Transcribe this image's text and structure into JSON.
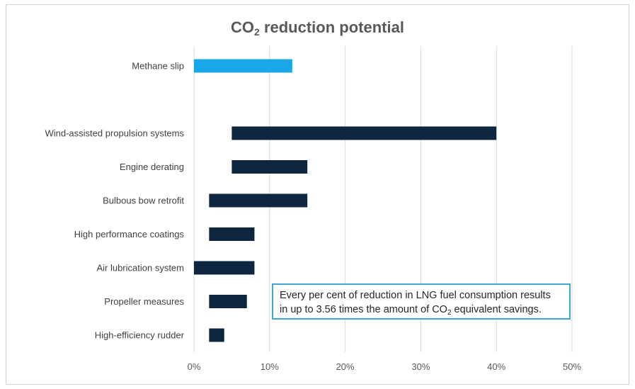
{
  "chart_data": {
    "type": "bar",
    "orientation": "horizontal",
    "subtype": "floating-range",
    "title": {
      "prefix": "CO",
      "sub": "2",
      "suffix": " reduction potential"
    },
    "xlabel": "",
    "ylabel": "",
    "xlim": [
      0,
      50
    ],
    "x_ticks": [
      "0%",
      "10%",
      "20%",
      "30%",
      "40%",
      "50%"
    ],
    "x_tick_values": [
      0,
      10,
      20,
      30,
      40,
      50
    ],
    "grid": "vertical",
    "series_colors": {
      "highlight": "#1aa7e8",
      "default": "#0f2640"
    },
    "categories": [
      {
        "label": "Methane slip",
        "low": 0,
        "high": 13,
        "highlight": true
      },
      {
        "label": "Wind-assisted propulsion systems",
        "low": 5,
        "high": 40,
        "highlight": false
      },
      {
        "label": "Engine derating",
        "low": 5,
        "high": 15,
        "highlight": false
      },
      {
        "label": "Bulbous bow retrofit",
        "low": 2,
        "high": 15,
        "highlight": false
      },
      {
        "label": "High performance coatings",
        "low": 2,
        "high": 8,
        "highlight": false
      },
      {
        "label": "Air lubrication system",
        "low": 0,
        "high": 8,
        "highlight": false
      },
      {
        "label": "Propeller measures",
        "low": 2,
        "high": 7,
        "highlight": false
      },
      {
        "label": "High-efficiency rudder",
        "low": 2,
        "high": 4,
        "highlight": false
      }
    ],
    "annotation": {
      "line1": "Every per cent of reduction in LNG fuel consumption results",
      "line2_prefix": "in up to 3.56 times the amount of CO",
      "line2_sub": "2",
      "line2_suffix": " equivalent savings."
    }
  }
}
